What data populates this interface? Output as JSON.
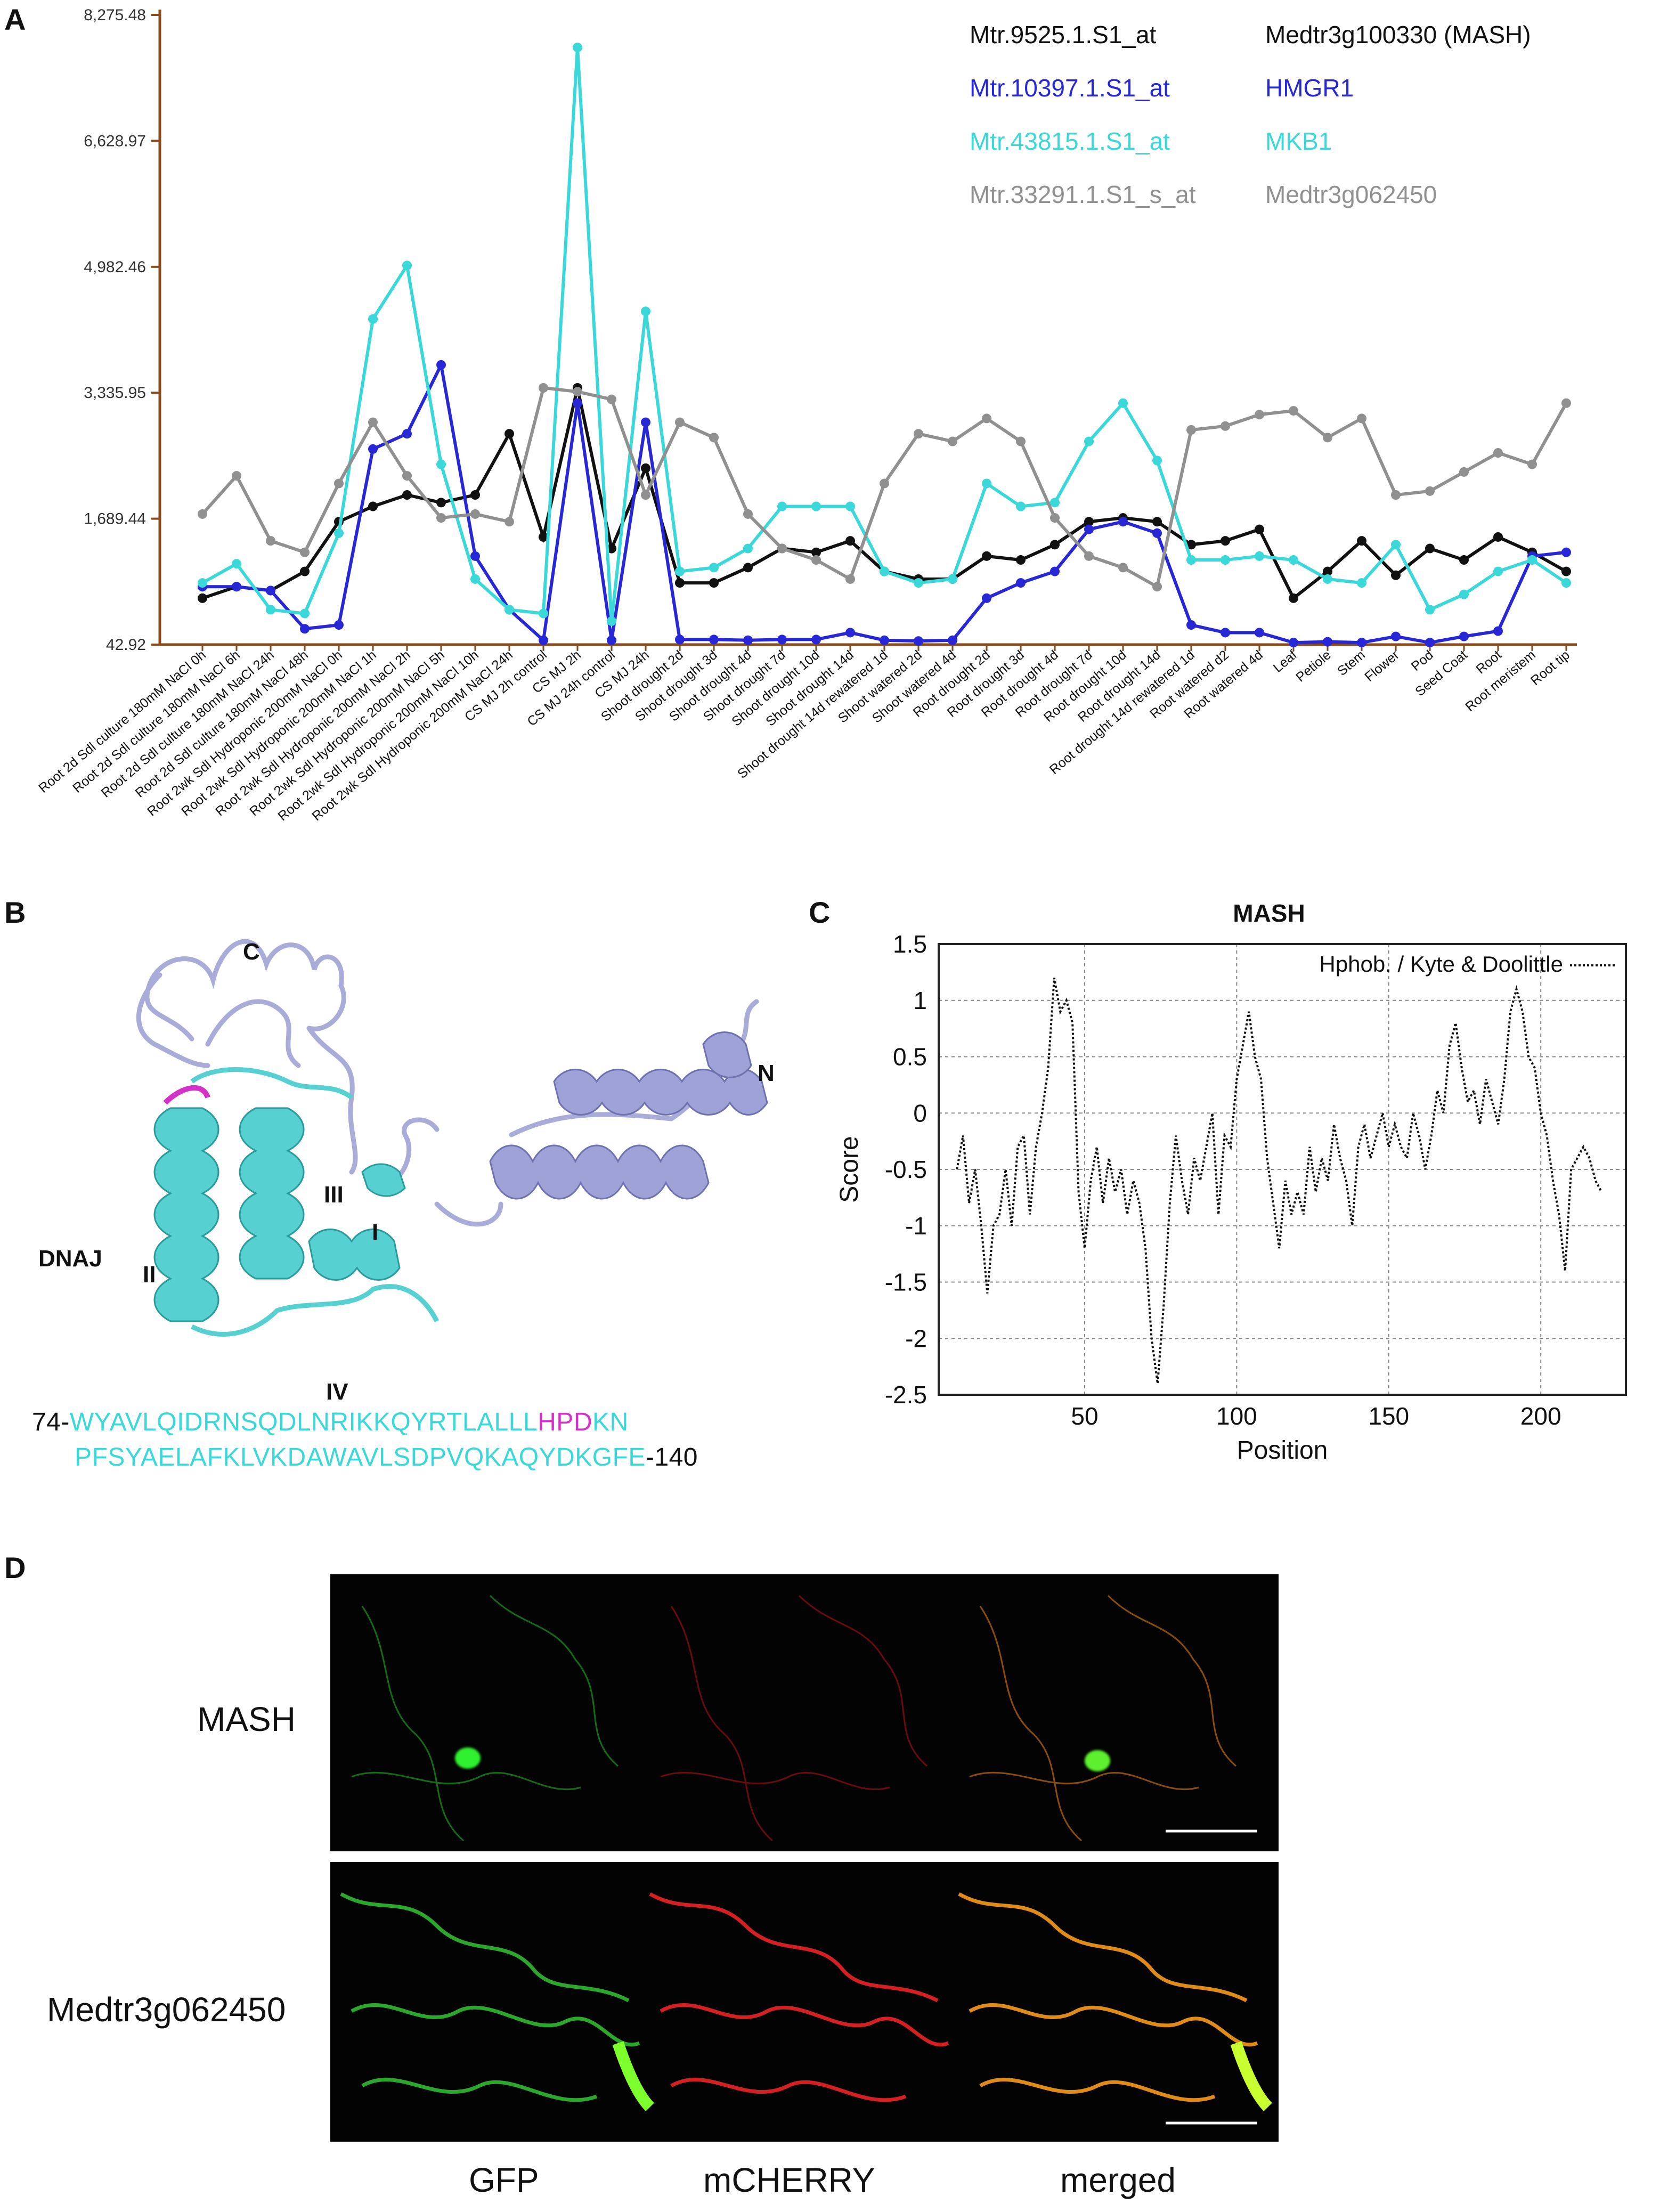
{
  "panels": {
    "a": "A",
    "b": "B",
    "c": "C",
    "d": "D"
  },
  "panel_a": {
    "chart_data": {
      "type": "line",
      "yticks": [
        "8,275.48",
        "6,628.97",
        "4,982.46",
        "3,335.95",
        "1,689.44",
        "42.92"
      ],
      "ylim": [
        42.92,
        8275.48
      ],
      "categories": [
        "Root 2d Sdl culture 180mM NaCl 0h",
        "Root 2d Sdl culture 180mM NaCl 6h",
        "Root 2d Sdl culture 180mM NaCl 24h",
        "Root 2d Sdl culture 180mM NaCl 48h",
        "Root 2wk Sdl Hydroponic 200mM NaCl 0h",
        "Root 2wk Sdl Hydroponic 200mM NaCl 1h",
        "Root 2wk Sdl Hydroponic 200mM NaCl 2h",
        "Root 2wk Sdl Hydroponic 200mM NaCl 5h",
        "Root 2wk Sdl Hydroponic 200mM NaCl 10h",
        "Root 2wk Sdl Hydroponic 200mM NaCl 24h",
        "CS MJ 2h control",
        "CS MJ 2h",
        "CS MJ 24h control",
        "CS MJ 24h",
        "Shoot drought 2d",
        "Shoot drought 3d",
        "Shoot drought 4d",
        "Shoot drought 7d",
        "Shoot drought 10d",
        "Shoot drought 14d",
        "Shoot drought 14d rewatered 1d",
        "Shoot watered 2d",
        "Shoot watered 4d",
        "Root drought 2d",
        "Root drought 3d",
        "Root drought 4d",
        "Root drought 7d",
        "Root drought 10d",
        "Root drought 14d",
        "Root drought 14d rewatered 1d",
        "Root watered d2",
        "Root watered 4d",
        "Leaf",
        "Petiole",
        "Stem",
        "Flower",
        "Pod",
        "Seed Coat",
        "Root",
        "Root meristem",
        "Root tip"
      ],
      "series": [
        {
          "name": "Mtr.9525.1.S1_at",
          "gene": "Medtr3g100330 (MASH)",
          "color": "#111111",
          "values": [
            650,
            800,
            750,
            1000,
            1650,
            1850,
            2000,
            1900,
            2000,
            2800,
            1450,
            3400,
            1300,
            2350,
            850,
            850,
            1050,
            1300,
            1250,
            1400,
            1000,
            900,
            900,
            1200,
            1150,
            1350,
            1650,
            1700,
            1650,
            1350,
            1400,
            1550,
            650,
            1000,
            1400,
            950,
            1300,
            1150,
            1450,
            1250,
            1000
          ]
        },
        {
          "name": "Mtr.10397.1.S1_at",
          "gene": "HMGR1",
          "color": "#2727d6",
          "values": [
            800,
            800,
            750,
            250,
            300,
            2600,
            2800,
            3700,
            1200,
            500,
            100,
            3200,
            100,
            2950,
            110,
            110,
            100,
            110,
            110,
            200,
            100,
            90,
            100,
            650,
            850,
            1000,
            1550,
            1650,
            1500,
            300,
            200,
            200,
            70,
            80,
            70,
            150,
            70,
            150,
            220,
            1200,
            1250
          ]
        },
        {
          "name": "Mtr.43815.1.S1_at",
          "gene": "MKB1",
          "color": "#3ad8d8",
          "values": [
            850,
            1100,
            500,
            450,
            1500,
            4300,
            5000,
            2400,
            900,
            500,
            450,
            7850,
            350,
            4400,
            1000,
            1050,
            1300,
            1850,
            1850,
            1850,
            1000,
            850,
            900,
            2150,
            1850,
            1900,
            2700,
            3200,
            2450,
            1150,
            1150,
            1200,
            1150,
            900,
            850,
            1350,
            500,
            700,
            1000,
            1150,
            850
          ]
        },
        {
          "name": "Mtr.33291.1.S1_s_at",
          "gene": "Medtr3g062450",
          "color": "#909090",
          "values": [
            1750,
            2250,
            1400,
            1250,
            2150,
            2950,
            2250,
            1700,
            1750,
            1650,
            3400,
            3350,
            3250,
            2000,
            2950,
            2750,
            1750,
            1300,
            1150,
            900,
            2150,
            2800,
            2700,
            3000,
            2700,
            1700,
            1200,
            1050,
            800,
            2850,
            2900,
            3050,
            3100,
            2750,
            3000,
            2000,
            2050,
            2300,
            2550,
            2400,
            3200
          ]
        }
      ]
    }
  },
  "panel_b": {
    "labels": {
      "c_term": "C",
      "n_term": "N",
      "domain": "DNAJ",
      "h1": "I",
      "h2": "II",
      "h3": "III",
      "h4": "IV"
    },
    "seq_start": "74-",
    "seq_line1_a": "WYAVLQIDRNSQDLNRIKKQYRTLALLL",
    "seq_line1_hpd": "HPD",
    "seq_line1_b": "KN",
    "seq_line2": "PFSYAELAFKLVKDAWAVLSDPVQKAQYDKGFE",
    "seq_end": "-140"
  },
  "panel_c": {
    "chart_data": {
      "type": "line",
      "title": "MASH",
      "xlabel": "Position",
      "ylabel": "Score",
      "legend": "Hphob. / Kyte & Doolittle",
      "xlim": [
        2,
        228
      ],
      "ylim": [
        -2.5,
        1.5
      ],
      "xticks": [
        "50",
        "100",
        "150",
        "200"
      ],
      "yticks": [
        "1.5",
        "1",
        "0.5",
        "0",
        "-0.5",
        "-1",
        "-1.5",
        "-2",
        "-2.5"
      ],
      "grid": true,
      "x": [
        8,
        10,
        12,
        14,
        16,
        18,
        20,
        22,
        24,
        26,
        28,
        30,
        32,
        34,
        36,
        38,
        40,
        42,
        44,
        46,
        48,
        50,
        52,
        54,
        56,
        58,
        60,
        62,
        64,
        66,
        68,
        70,
        72,
        74,
        76,
        78,
        80,
        82,
        84,
        86,
        88,
        90,
        92,
        94,
        96,
        98,
        100,
        102,
        104,
        106,
        108,
        110,
        112,
        114,
        116,
        118,
        120,
        122,
        124,
        126,
        128,
        130,
        132,
        134,
        136,
        138,
        140,
        142,
        144,
        146,
        148,
        150,
        152,
        154,
        156,
        158,
        160,
        162,
        164,
        166,
        168,
        170,
        172,
        174,
        176,
        178,
        180,
        182,
        184,
        186,
        188,
        190,
        192,
        194,
        196,
        198,
        200,
        202,
        204,
        206,
        208,
        210,
        212,
        214,
        216,
        218,
        220
      ],
      "values": [
        -0.5,
        -0.2,
        -0.8,
        -0.5,
        -1.0,
        -1.6,
        -1.0,
        -0.9,
        -0.5,
        -1.0,
        -0.3,
        -0.2,
        -0.9,
        -0.3,
        0.0,
        0.4,
        1.2,
        0.9,
        1.0,
        0.8,
        -0.7,
        -1.2,
        -0.6,
        -0.3,
        -0.8,
        -0.4,
        -0.7,
        -0.5,
        -0.9,
        -0.6,
        -0.8,
        -1.2,
        -2.0,
        -2.4,
        -1.7,
        -0.8,
        -0.2,
        -0.6,
        -0.9,
        -0.4,
        -0.6,
        -0.3,
        0.0,
        -0.9,
        -0.2,
        -0.3,
        0.3,
        0.6,
        0.9,
        0.5,
        0.3,
        -0.4,
        -0.8,
        -1.2,
        -0.6,
        -0.9,
        -0.7,
        -0.9,
        -0.3,
        -0.7,
        -0.4,
        -0.6,
        -0.1,
        -0.4,
        -0.6,
        -1.0,
        -0.3,
        -0.1,
        -0.4,
        -0.2,
        0.0,
        -0.3,
        -0.1,
        -0.3,
        -0.4,
        0.0,
        -0.2,
        -0.5,
        -0.2,
        0.2,
        0.0,
        0.6,
        0.8,
        0.4,
        0.1,
        0.2,
        -0.1,
        0.3,
        0.1,
        -0.1,
        0.3,
        0.9,
        1.1,
        0.9,
        0.5,
        0.4,
        0.0,
        -0.2,
        -0.6,
        -0.9,
        -1.4,
        -0.5,
        -0.4,
        -0.3,
        -0.4,
        -0.6,
        -0.7
      ]
    }
  },
  "panel_d": {
    "rows": [
      "MASH",
      "Medtr3g062450"
    ],
    "columns": [
      "GFP",
      "mCHERRY",
      "merged"
    ]
  }
}
